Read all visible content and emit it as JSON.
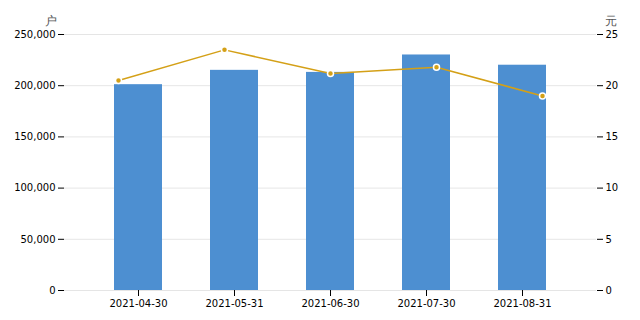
{
  "chart_data": {
    "type": "bar",
    "categories": [
      "2021-04-30",
      "2021-05-31",
      "2021-06-30",
      "2021-07-30",
      "2021-08-31"
    ],
    "series": [
      {
        "type": "bar",
        "color": "#4d8fd1",
        "values": [
          201000,
          215000,
          213000,
          230000,
          220000
        ]
      },
      {
        "type": "line",
        "axis": "y2",
        "color": "#d4a017",
        "marker": "circle",
        "values": [
          20.5,
          23.5,
          21.2,
          21.8,
          19.0
        ]
      }
    ],
    "ylabel": "户",
    "y2label": "元",
    "ylim": [
      0,
      250000
    ],
    "yticks": [
      0,
      {
        "value": 50000,
        "label": "50,000"
      },
      {
        "value": 100000,
        "label": "100,000"
      },
      {
        "value": 150000,
        "label": "150,000"
      },
      {
        "value": 200000,
        "label": "200,000"
      },
      {
        "value": 250000,
        "label": "250,000"
      }
    ],
    "y2lim": [
      0,
      25
    ],
    "y2ticks": [
      0,
      5,
      10,
      15,
      20,
      25
    ],
    "grid": true
  }
}
